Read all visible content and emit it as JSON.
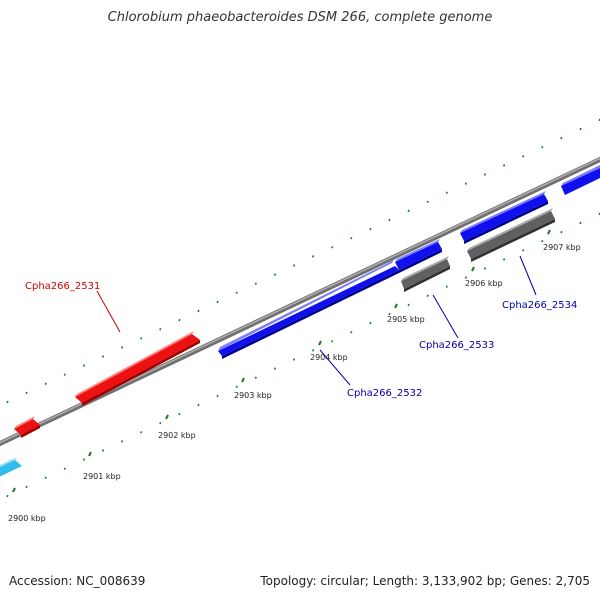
{
  "title": "Chlorobium phaeobacteroides DSM 266, complete genome",
  "footer": {
    "accession": "Accession: NC_008639",
    "summary": "Topology: circular; Length: 3,133,902 bp; Genes: 2,705"
  },
  "colors": {
    "backbone": "#8a8a8a",
    "tick": "#1f7a1f",
    "red_gene": "#ee1111",
    "blue_gene": "#1010ee",
    "gray_gene": "#606060",
    "cyan_gene": "#33bbee",
    "red_label": "#cc0000",
    "blue_label": "#0000aa"
  },
  "ticks": [
    {
      "label": "2900 kbp"
    },
    {
      "label": "2901 kbp"
    },
    {
      "label": "2902 kbp"
    },
    {
      "label": "2903 kbp"
    },
    {
      "label": "2904 kbp"
    },
    {
      "label": "2905 kbp"
    },
    {
      "label": "2906 kbp"
    },
    {
      "label": "2907 kbp"
    }
  ],
  "genes": [
    {
      "label": "Cpha266_2531",
      "color": "red"
    },
    {
      "label": "Cpha266_2532",
      "color": "blue"
    },
    {
      "label": "Cpha266_2533",
      "color": "blue"
    },
    {
      "label": "Cpha266_2534",
      "color": "blue"
    }
  ]
}
